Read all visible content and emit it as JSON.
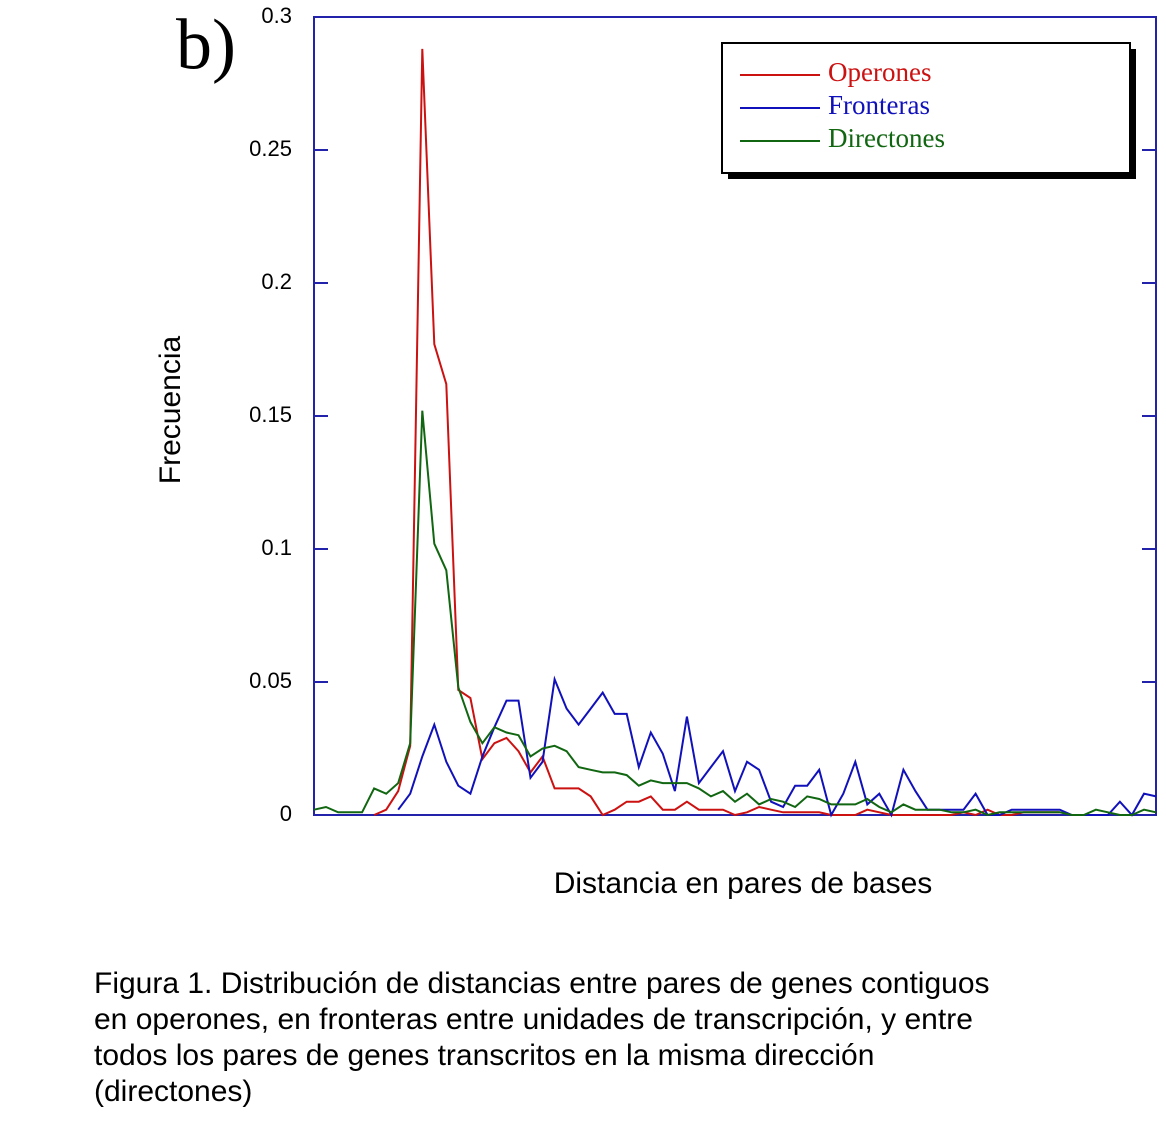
{
  "chart_data": {
    "type": "line",
    "panel_label": "b)",
    "ylabel": "Frecuencia",
    "xlabel": "Distancia en pares de bases",
    "ylim": [
      0,
      0.3
    ],
    "yticks": [
      0,
      0.05,
      0.1,
      0.15,
      0.2,
      0.25,
      0.3
    ],
    "legend": "upper right",
    "series": [
      {
        "name": "Operones",
        "color": "#cc1111",
        "values": [
          null,
          null,
          null,
          null,
          null,
          0,
          0.002,
          0.009,
          0.026,
          0.288,
          0.177,
          0.162,
          0.047,
          0.044,
          0.021,
          0.027,
          0.029,
          0.024,
          0.016,
          0.022,
          0.01,
          0.01,
          0.01,
          0.007,
          0,
          0.002,
          0.005,
          0.005,
          0.007,
          0.002,
          0.002,
          0.005,
          0.002,
          0.002,
          0.002,
          0,
          0.001,
          0.003,
          0.002,
          0.001,
          0.001,
          0.001,
          0.001,
          0,
          0,
          0,
          0.002,
          0.001,
          0,
          0,
          0,
          0,
          0,
          0,
          0.001,
          0,
          0.002,
          0,
          0,
          0.001,
          0.001,
          0.001,
          0.001,
          null,
          null,
          null,
          null,
          null,
          null,
          null,
          null
        ]
      },
      {
        "name": "Fronteras",
        "color": "#1111bb",
        "values": [
          null,
          null,
          null,
          null,
          null,
          null,
          null,
          0.002,
          0.008,
          0.022,
          0.034,
          0.02,
          0.011,
          0.008,
          0.022,
          0.033,
          0.043,
          0.043,
          0.014,
          0.02,
          0.051,
          0.04,
          0.034,
          0.04,
          0.046,
          0.038,
          0.038,
          0.018,
          0.031,
          0.023,
          0.009,
          0.037,
          0.012,
          0.018,
          0.024,
          0.009,
          0.02,
          0.017,
          0.005,
          0.003,
          0.011,
          0.011,
          0.017,
          0,
          0.008,
          0.02,
          0.004,
          0.008,
          0,
          0.017,
          0.009,
          0.002,
          0.002,
          0.002,
          0.002,
          0.008,
          0,
          0,
          0.002,
          0.002,
          0.002,
          0.002,
          0.002,
          0,
          0,
          0,
          0,
          0.005,
          0,
          0.008,
          0.007
        ]
      },
      {
        "name": "Directones",
        "color": "#116611",
        "values": [
          0.002,
          0.003,
          0.001,
          0.001,
          0.001,
          0.01,
          0.008,
          0.012,
          0.027,
          0.152,
          0.102,
          0.092,
          0.048,
          0.035,
          0.027,
          0.033,
          0.031,
          0.03,
          0.022,
          0.025,
          0.026,
          0.024,
          0.018,
          0.017,
          0.016,
          0.016,
          0.015,
          0.011,
          0.013,
          0.012,
          0.012,
          0.012,
          0.01,
          0.007,
          0.009,
          0.005,
          0.008,
          0.004,
          0.006,
          0.005,
          0.003,
          0.007,
          0.006,
          0.004,
          0.004,
          0.004,
          0.006,
          0.003,
          0.001,
          0.004,
          0.002,
          0.002,
          0.002,
          0.001,
          0.001,
          0.002,
          0,
          0.001,
          0.001,
          0.001,
          0.001,
          0.001,
          0.001,
          0,
          0,
          0.002,
          0.001,
          0,
          0,
          0.002,
          0.001
        ]
      }
    ],
    "caption": [
      "Figura 1. Distribución de distancias entre pares de genes contiguos",
      "en operones, en fronteras entre unidades de transcripción, y entre",
      "todos los pares de genes transcritos en la misma dirección",
      "(directones)"
    ]
  }
}
